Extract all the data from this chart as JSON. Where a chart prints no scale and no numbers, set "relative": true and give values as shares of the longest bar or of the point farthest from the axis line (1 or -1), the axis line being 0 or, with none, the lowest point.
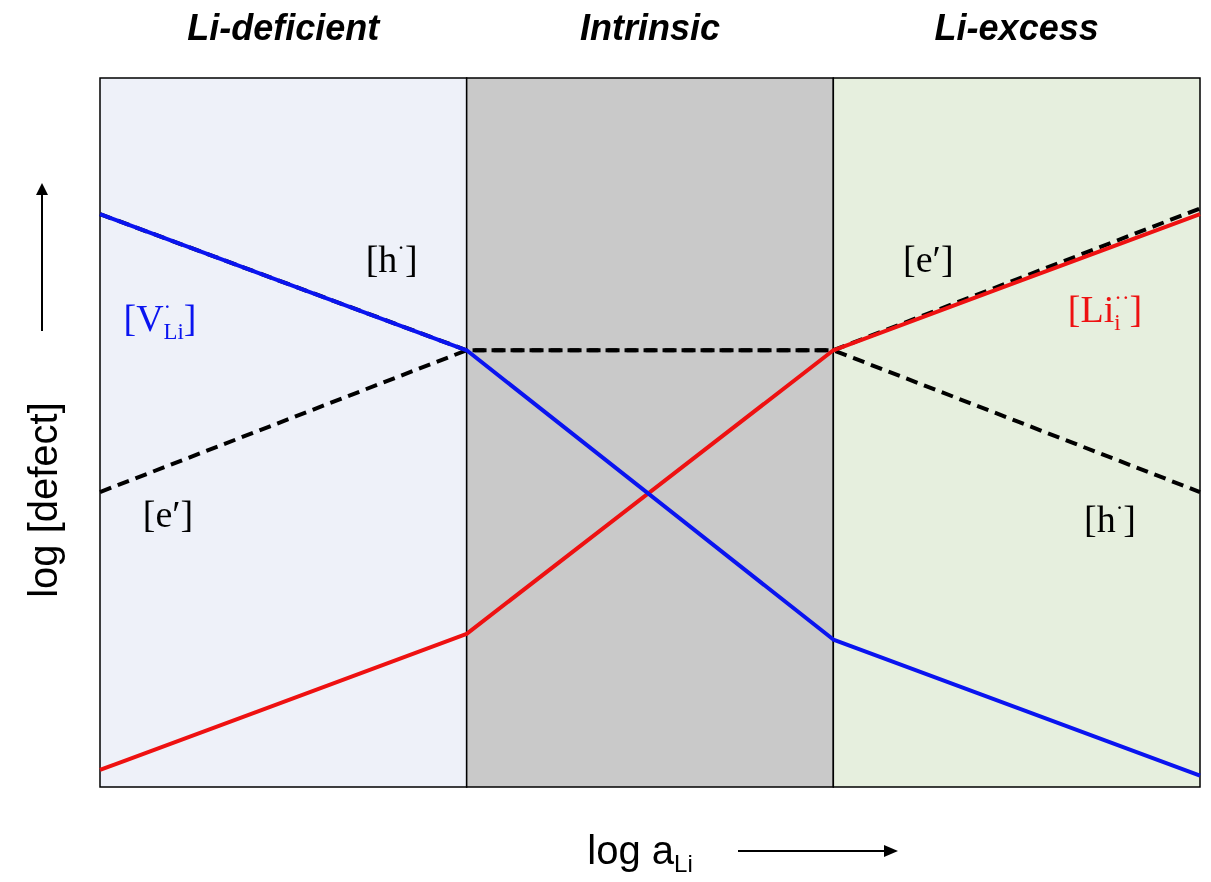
{
  "chart_data": {
    "type": "line",
    "relative": true,
    "xlabel": "log a$_{Li}$",
    "ylabel": "log [defect]",
    "categories": [
      null,
      null,
      null,
      null
    ],
    "series": [
      {
        "name": "[V$^{·}$$_{Li}$]",
        "color": "#0a14f0",
        "values": [
          0.99,
          0.75,
          0.24,
          0
        ]
      },
      {
        "name": "[Li$_{i}$$^{··}$]",
        "color": "#ee1111",
        "values": [
          0.01,
          0.25,
          0.75,
          0.99
        ]
      },
      {
        "name": "[h$^{·}$]",
        "color": "#000000",
        "line_style": "dashed",
        "values": [
          0.99,
          0.75,
          0.75,
          0.5
        ]
      },
      {
        "name": "[e′]",
        "color": "#000000",
        "line_style": "dashed",
        "values": [
          0.5,
          0.75,
          0.75,
          1
        ]
      }
    ],
    "annotations": [
      "Li-deficient",
      "Intrinsic",
      "Li-excess"
    ],
    "legend": false,
    "marker": "none"
  }
}
